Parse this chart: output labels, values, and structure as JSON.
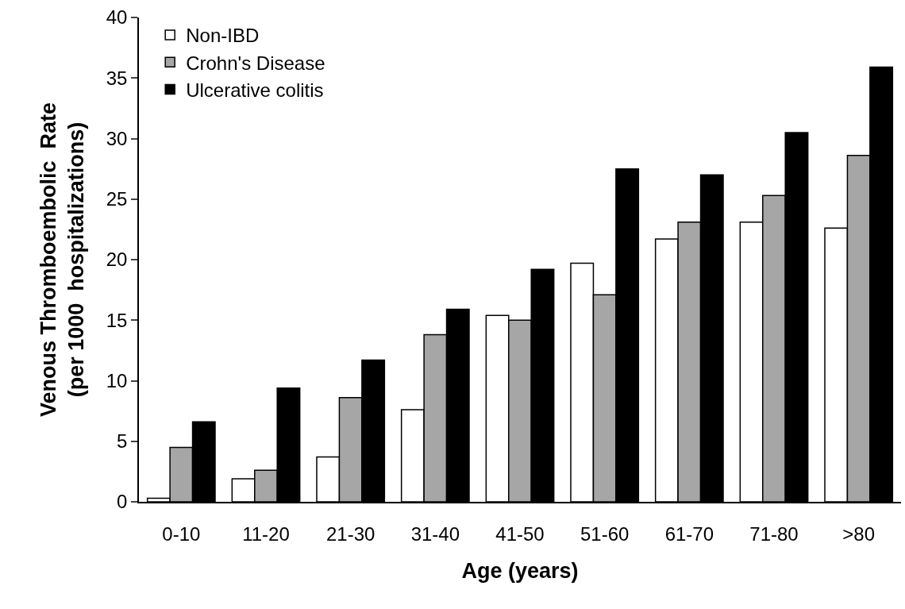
{
  "chart_data": {
    "type": "bar",
    "xlabel": "Age (years)",
    "ylabel": "Venous Thromboembolic  Rate\n(per 1000  hospitalizations)",
    "categories": [
      "0-10",
      "11-20",
      "21-30",
      "31-40",
      "41-50",
      "51-60",
      "61-70",
      "71-80",
      ">80"
    ],
    "series": [
      {
        "name": "Non-IBD",
        "color": "#ffffff",
        "values": [
          0.3,
          1.9,
          3.7,
          7.6,
          15.4,
          19.7,
          21.7,
          23.1,
          22.6
        ]
      },
      {
        "name": "Crohn's Disease",
        "color": "#a6a6a6",
        "values": [
          4.5,
          2.6,
          8.6,
          13.8,
          15.0,
          17.1,
          23.1,
          25.3,
          28.6
        ]
      },
      {
        "name": "Ulcerative colitis",
        "color": "#000000",
        "values": [
          6.6,
          9.4,
          11.7,
          15.9,
          19.2,
          27.5,
          27.0,
          30.5,
          35.9
        ]
      }
    ],
    "ylim": [
      0,
      40
    ],
    "yticks": [
      0,
      5,
      10,
      15,
      20,
      25,
      30,
      35,
      40
    ],
    "grid": false,
    "legend": "top left"
  }
}
